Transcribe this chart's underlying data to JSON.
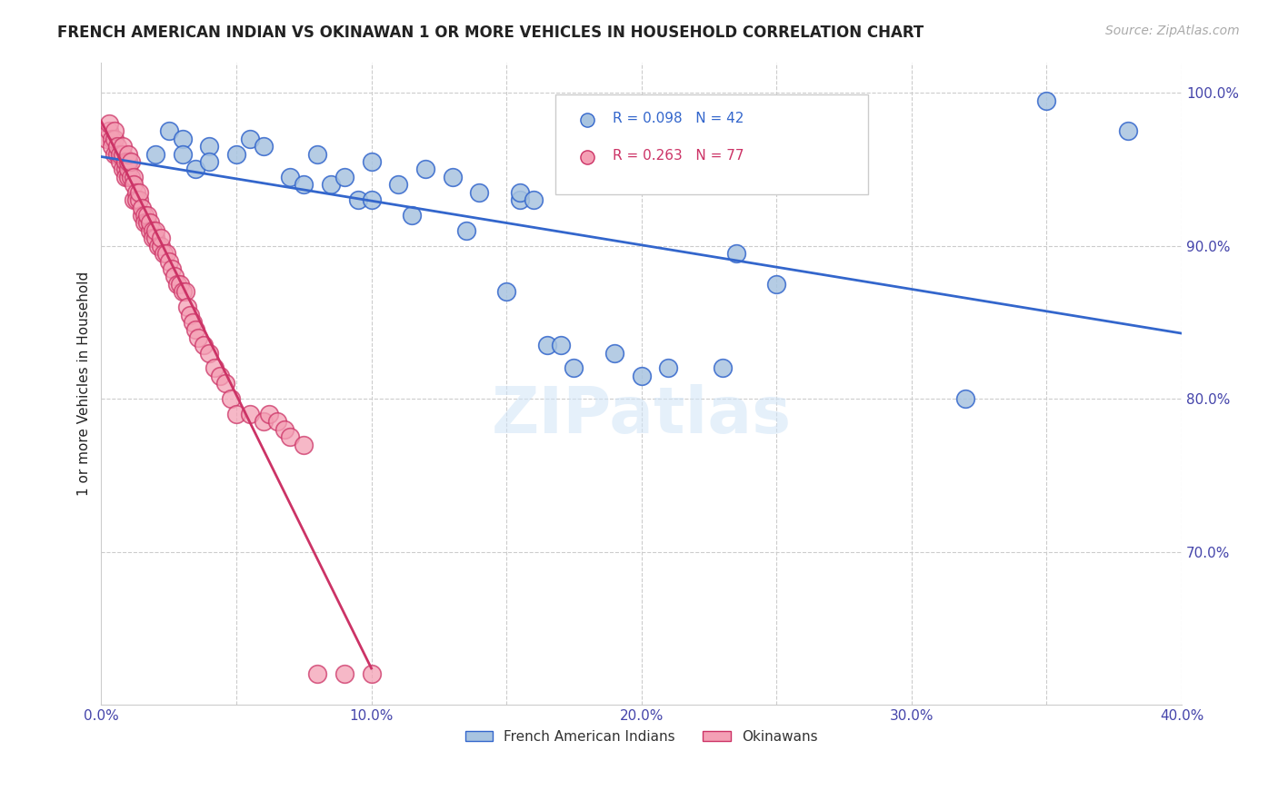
{
  "title": "FRENCH AMERICAN INDIAN VS OKINAWAN 1 OR MORE VEHICLES IN HOUSEHOLD CORRELATION CHART",
  "source": "Source: ZipAtlas.com",
  "ylabel": "1 or more Vehicles in Household",
  "xlim": [
    0.0,
    0.4
  ],
  "ylim": [
    0.6,
    1.02
  ],
  "xtick_positions": [
    0.0,
    0.05,
    0.1,
    0.15,
    0.2,
    0.25,
    0.3,
    0.35,
    0.4
  ],
  "xticklabels": [
    "0.0%",
    "",
    "10.0%",
    "",
    "20.0%",
    "",
    "30.0%",
    "",
    "40.0%"
  ],
  "yticks_right": [
    0.7,
    0.8,
    0.9,
    1.0
  ],
  "yticklabels_right": [
    "70.0%",
    "80.0%",
    "90.0%",
    "100.0%"
  ],
  "grid_color": "#cccccc",
  "background_color": "#ffffff",
  "blue_color": "#a8c4e0",
  "pink_color": "#f4a0b5",
  "blue_line_color": "#3366cc",
  "pink_line_color": "#cc3366",
  "tick_label_color": "#4444aa",
  "R_blue": 0.098,
  "N_blue": 42,
  "R_pink": 0.263,
  "N_pink": 77,
  "legend_label_blue": "French American Indians",
  "legend_label_pink": "Okinawans",
  "watermark": "ZIPatlas",
  "blue_scatter_x": [
    0.01,
    0.02,
    0.025,
    0.03,
    0.03,
    0.035,
    0.04,
    0.04,
    0.05,
    0.055,
    0.06,
    0.07,
    0.075,
    0.08,
    0.085,
    0.09,
    0.095,
    0.1,
    0.1,
    0.11,
    0.115,
    0.12,
    0.13,
    0.135,
    0.14,
    0.15,
    0.155,
    0.155,
    0.16,
    0.165,
    0.17,
    0.175,
    0.18,
    0.19,
    0.2,
    0.21,
    0.23,
    0.235,
    0.25,
    0.32,
    0.35,
    0.38
  ],
  "blue_scatter_y": [
    0.955,
    0.96,
    0.975,
    0.97,
    0.96,
    0.95,
    0.965,
    0.955,
    0.96,
    0.97,
    0.965,
    0.945,
    0.94,
    0.96,
    0.94,
    0.945,
    0.93,
    0.93,
    0.955,
    0.94,
    0.92,
    0.95,
    0.945,
    0.91,
    0.935,
    0.87,
    0.93,
    0.935,
    0.93,
    0.835,
    0.835,
    0.82,
    0.945,
    0.83,
    0.815,
    0.82,
    0.82,
    0.895,
    0.875,
    0.8,
    0.995,
    0.975
  ],
  "pink_scatter_x": [
    0.002,
    0.003,
    0.003,
    0.004,
    0.004,
    0.005,
    0.005,
    0.005,
    0.006,
    0.006,
    0.007,
    0.007,
    0.008,
    0.008,
    0.008,
    0.009,
    0.009,
    0.009,
    0.01,
    0.01,
    0.01,
    0.01,
    0.011,
    0.011,
    0.012,
    0.012,
    0.012,
    0.013,
    0.013,
    0.014,
    0.014,
    0.015,
    0.015,
    0.016,
    0.016,
    0.017,
    0.017,
    0.018,
    0.018,
    0.019,
    0.019,
    0.02,
    0.02,
    0.021,
    0.022,
    0.022,
    0.023,
    0.024,
    0.025,
    0.026,
    0.027,
    0.028,
    0.029,
    0.03,
    0.031,
    0.032,
    0.033,
    0.034,
    0.035,
    0.036,
    0.038,
    0.04,
    0.042,
    0.044,
    0.046,
    0.048,
    0.05,
    0.055,
    0.06,
    0.062,
    0.065,
    0.068,
    0.07,
    0.075,
    0.08,
    0.09,
    0.1
  ],
  "pink_scatter_y": [
    0.97,
    0.975,
    0.98,
    0.97,
    0.965,
    0.96,
    0.97,
    0.975,
    0.96,
    0.965,
    0.955,
    0.96,
    0.95,
    0.96,
    0.965,
    0.95,
    0.945,
    0.955,
    0.945,
    0.95,
    0.955,
    0.96,
    0.945,
    0.955,
    0.945,
    0.93,
    0.94,
    0.935,
    0.93,
    0.93,
    0.935,
    0.92,
    0.925,
    0.92,
    0.915,
    0.915,
    0.92,
    0.91,
    0.915,
    0.91,
    0.905,
    0.905,
    0.91,
    0.9,
    0.9,
    0.905,
    0.895,
    0.895,
    0.89,
    0.885,
    0.88,
    0.875,
    0.875,
    0.87,
    0.87,
    0.86,
    0.855,
    0.85,
    0.845,
    0.84,
    0.835,
    0.83,
    0.82,
    0.815,
    0.81,
    0.8,
    0.79,
    0.79,
    0.785,
    0.79,
    0.785,
    0.78,
    0.775,
    0.77,
    0.62,
    0.62,
    0.62
  ]
}
